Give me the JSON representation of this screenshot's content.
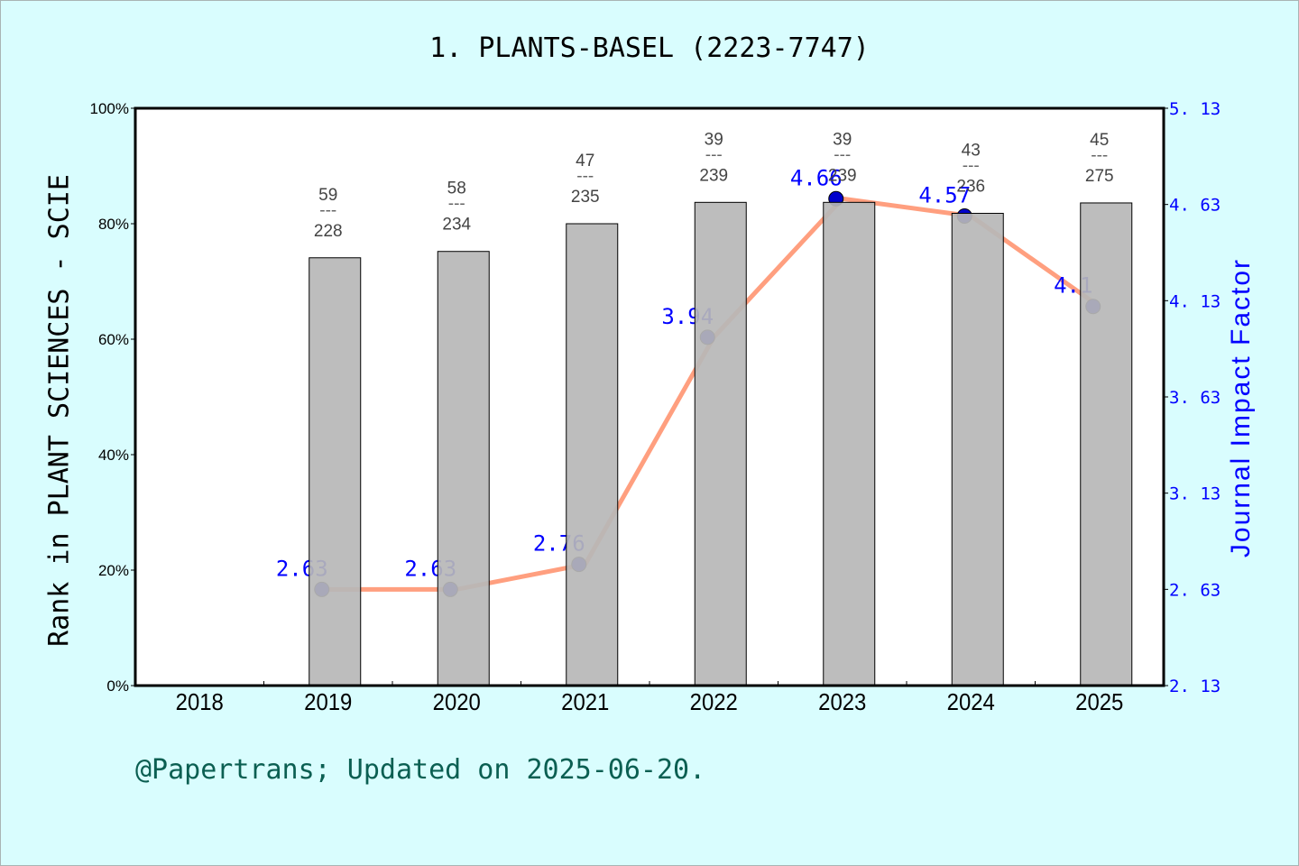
{
  "title": "1. PLANTS-BASEL (2223-7747)",
  "footer": "@Papertrans; Updated on 2025-06-20.",
  "colors": {
    "background": "#d9fdfe",
    "plot_bg": "#ffffff",
    "bar_fill": "#b7b7b7",
    "line": "#ff9f7f",
    "marker": "#0000cc",
    "if_label": "#0000ff",
    "rank_label": "#444444",
    "footer": "#0b5f52"
  },
  "chart_data": {
    "type": "bar+line",
    "title": "1. PLANTS-BASEL (2223-7747)",
    "xlabel": "",
    "ylabel": "Rank in PLANT SCIENCES - SCIE",
    "y2label": "Journal Impact Factor",
    "categories": [
      "2018",
      "2019",
      "2020",
      "2021",
      "2022",
      "2023",
      "2024",
      "2025"
    ],
    "ylim": [
      0,
      100
    ],
    "y_ticks": [
      "0%",
      "20%",
      "40%",
      "60%",
      "80%",
      "100%"
    ],
    "y2lim": [
      2.13,
      5.13
    ],
    "y2_ticks": [
      "2.13",
      "2.63",
      "3.13",
      "3.63",
      "4.13",
      "4.63",
      "5.13"
    ],
    "grid": false,
    "series": [
      {
        "name": "Rank percentile (bar)",
        "type": "bar",
        "axis": "left",
        "values": [
          null,
          74.1,
          75.2,
          80.0,
          83.7,
          83.7,
          81.8,
          83.6
        ],
        "rank": [
          null,
          59,
          58,
          47,
          39,
          39,
          43,
          45
        ],
        "total": [
          null,
          228,
          234,
          235,
          239,
          239,
          236,
          275
        ]
      },
      {
        "name": "Journal Impact Factor (line)",
        "type": "line",
        "axis": "right",
        "values": [
          null,
          2.63,
          2.63,
          2.76,
          3.94,
          4.66,
          4.57,
          4.1
        ],
        "labels": [
          null,
          "2.63",
          "2.63",
          "2.76",
          "3.94",
          "4.66",
          "4.57",
          "4.1"
        ]
      }
    ]
  }
}
